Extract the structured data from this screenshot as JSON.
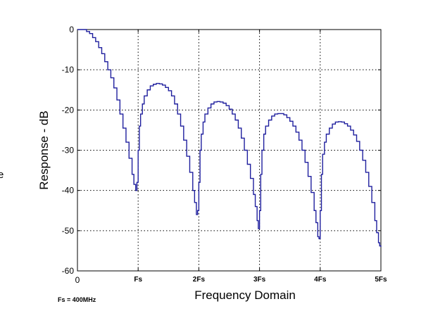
{
  "chart_data": {
    "type": "line",
    "title": "",
    "xlabel": "Frequency Domain",
    "ylabel": "Response - dB",
    "xlim": [
      0,
      5
    ],
    "ylim": [
      -60,
      0
    ],
    "grid": true,
    "grid_style": "dotted",
    "xticks": [
      0,
      1,
      2,
      3,
      4,
      5
    ],
    "xtick_labels": [
      "0",
      "Fs",
      "2Fs",
      "3Fs",
      "4Fs",
      "5Fs"
    ],
    "yticks": [
      0,
      -10,
      -20,
      -30,
      -40,
      -50,
      -60
    ],
    "ytick_labels": [
      "0",
      "-10",
      "-20",
      "-30",
      "-40",
      "-50",
      "-60"
    ],
    "note": "Fs = 400MHz",
    "left_edge_text": "e",
    "series": [
      {
        "color": "#1f1f9e",
        "x": [
          0,
          0.05,
          0.1,
          0.15,
          0.2,
          0.25,
          0.3,
          0.35,
          0.4,
          0.45,
          0.5,
          0.55,
          0.6,
          0.65,
          0.7,
          0.75,
          0.8,
          0.85,
          0.9,
          0.93,
          0.96,
          0.98,
          1.0,
          1.02,
          1.04,
          1.07,
          1.1,
          1.15,
          1.2,
          1.25,
          1.3,
          1.35,
          1.4,
          1.45,
          1.5,
          1.55,
          1.6,
          1.65,
          1.7,
          1.75,
          1.8,
          1.85,
          1.9,
          1.93,
          1.96,
          1.98,
          2.0,
          2.02,
          2.04,
          2.07,
          2.1,
          2.15,
          2.2,
          2.25,
          2.3,
          2.35,
          2.4,
          2.45,
          2.5,
          2.55,
          2.6,
          2.65,
          2.7,
          2.75,
          2.8,
          2.85,
          2.9,
          2.93,
          2.96,
          2.98,
          3.0,
          3.02,
          3.04,
          3.07,
          3.1,
          3.15,
          3.2,
          3.25,
          3.3,
          3.35,
          3.4,
          3.45,
          3.5,
          3.55,
          3.6,
          3.65,
          3.7,
          3.75,
          3.8,
          3.85,
          3.9,
          3.93,
          3.96,
          3.98,
          4.0,
          4.02,
          4.04,
          4.07,
          4.1,
          4.15,
          4.2,
          4.25,
          4.3,
          4.35,
          4.4,
          4.45,
          4.5,
          4.55,
          4.6,
          4.65,
          4.7,
          4.75,
          4.8,
          4.85,
          4.9,
          4.93,
          4.96,
          4.98,
          5.0
        ],
        "y": [
          0,
          0,
          0,
          -0.5,
          -1.0,
          -2.0,
          -3.0,
          -4.5,
          -6.0,
          -8.0,
          -10.0,
          -12.0,
          -14.5,
          -17.5,
          -21.0,
          -24.5,
          -28.0,
          -32.0,
          -36.0,
          -38.5,
          -40.0,
          -38.0,
          -30.0,
          -24.0,
          -21.0,
          -18.5,
          -16.5,
          -15.0,
          -14.0,
          -13.6,
          -13.4,
          -13.5,
          -13.8,
          -14.4,
          -15.2,
          -16.5,
          -18.5,
          -21.0,
          -24.0,
          -27.5,
          -31.5,
          -35.5,
          -40.0,
          -43.0,
          -46.0,
          -45.0,
          -38.0,
          -30.0,
          -26.0,
          -23.0,
          -21.0,
          -19.5,
          -18.5,
          -18.0,
          -17.9,
          -18.0,
          -18.3,
          -18.9,
          -19.8,
          -21.0,
          -22.5,
          -24.5,
          -27.0,
          -30.0,
          -33.5,
          -37.0,
          -41.0,
          -44.0,
          -47.5,
          -49.5,
          -45.0,
          -36.0,
          -30.0,
          -26.0,
          -24.0,
          -22.5,
          -21.5,
          -21.0,
          -20.9,
          -20.9,
          -21.2,
          -21.9,
          -22.8,
          -24.0,
          -25.5,
          -27.5,
          -30.0,
          -33.0,
          -36.5,
          -40.5,
          -45.0,
          -48.0,
          -51.5,
          -52.0,
          -45.0,
          -36.0,
          -31.0,
          -28.0,
          -26.0,
          -24.5,
          -23.5,
          -23.0,
          -22.9,
          -23.0,
          -23.4,
          -24.0,
          -25.0,
          -26.2,
          -27.8,
          -30.0,
          -32.5,
          -35.5,
          -39.0,
          -43.0,
          -47.5,
          -50.5,
          -53.0,
          -53.8,
          -54.0
        ]
      }
    ]
  }
}
